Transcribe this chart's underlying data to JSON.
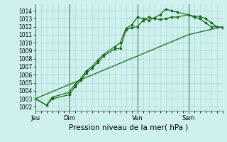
{
  "xlabel": "Pression niveau de la mer( hPa )",
  "bg_color": "#cef0ee",
  "grid_color": "#aad8cc",
  "line_color": "#1a6b1a",
  "ylim": [
    1001.5,
    1014.8
  ],
  "yticks": [
    1002,
    1003,
    1004,
    1005,
    1006,
    1007,
    1008,
    1009,
    1010,
    1011,
    1012,
    1013,
    1014
  ],
  "day_positions": [
    0,
    6,
    18,
    27
  ],
  "day_labels": [
    "Jeu",
    "Dim",
    "Ven",
    "Sam"
  ],
  "xlim": [
    0,
    33
  ],
  "line1_x": [
    0,
    2,
    3,
    6,
    7,
    8,
    9,
    10,
    11,
    12,
    14,
    15,
    16,
    17,
    18,
    19,
    20,
    21,
    22,
    23,
    24,
    25,
    27,
    28,
    29,
    30,
    31,
    32,
    33
  ],
  "line1_y": [
    1003.0,
    1002.2,
    1003.0,
    1003.5,
    1004.5,
    1005.3,
    1006.2,
    1006.8,
    1007.5,
    1008.3,
    1009.2,
    1009.3,
    1011.6,
    1011.9,
    1012.0,
    1012.8,
    1013.2,
    1013.0,
    1012.9,
    1013.0,
    1013.2,
    1013.2,
    1013.5,
    1013.3,
    1013.3,
    1013.0,
    1012.5,
    1012.0,
    1011.9
  ],
  "line2_x": [
    0,
    2,
    3,
    6,
    7,
    8,
    9,
    10,
    11,
    12,
    14,
    15,
    16,
    17,
    18,
    19,
    20,
    21,
    22,
    23,
    24,
    25,
    27,
    28,
    29,
    30,
    31,
    32,
    33
  ],
  "line2_y": [
    1003.0,
    1002.2,
    1003.2,
    1003.8,
    1004.8,
    1005.5,
    1006.5,
    1007.0,
    1007.8,
    1008.5,
    1009.5,
    1010.0,
    1011.8,
    1012.2,
    1013.2,
    1013.0,
    1012.8,
    1013.1,
    1013.5,
    1014.2,
    1014.0,
    1013.8,
    1013.5,
    1013.2,
    1013.0,
    1012.5,
    1012.0,
    1012.0,
    1011.9
  ],
  "line3_x": [
    0,
    27,
    33
  ],
  "line3_y": [
    1003.0,
    1011.0,
    1012.0
  ],
  "vline_positions": [
    0,
    6,
    18,
    27
  ]
}
